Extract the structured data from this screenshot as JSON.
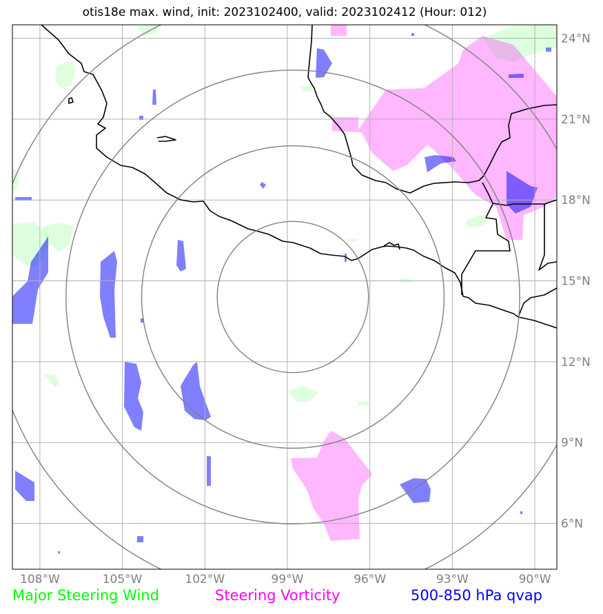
{
  "title": "otis18e max. wind, init: 2023102400, valid: 2023102412 (Hour: 012)",
  "colors": {
    "steering_wind": "#00ff00",
    "steering_vorticity": "#ff00ff",
    "qvap": "#0000ff",
    "grid": "#b0b0b0",
    "range_rings": "#808080",
    "coastline": "#000000",
    "tick_labels": "#808080"
  },
  "map": {
    "lon_range": [
      -109,
      -89.2
    ],
    "lat_range": [
      4.3,
      24.5
    ],
    "lon_ticks": [
      {
        "value": -108,
        "label": "108°W"
      },
      {
        "value": -105,
        "label": "105°W"
      },
      {
        "value": -102,
        "label": "102°W"
      },
      {
        "value": -99,
        "label": "99°W"
      },
      {
        "value": -96,
        "label": "96°W"
      },
      {
        "value": -93,
        "label": "93°W"
      },
      {
        "value": -90,
        "label": "90°W"
      }
    ],
    "lat_ticks": [
      {
        "value": 24,
        "label": "24°N"
      },
      {
        "value": 21,
        "label": "21°N"
      },
      {
        "value": 18,
        "label": "18°N"
      },
      {
        "value": 15,
        "label": "15°N"
      },
      {
        "value": 12,
        "label": "12°N"
      },
      {
        "value": 9,
        "label": "9°N"
      },
      {
        "value": 6,
        "label": "6°N"
      }
    ],
    "storm_center": {
      "lon": -98.8,
      "lat": 14.4
    },
    "range_rings_deg": [
      2.75,
      5.5,
      8.25,
      11.0
    ]
  },
  "legend": [
    {
      "label": "Major Steering Wind",
      "color": "#00ff00"
    },
    {
      "label": "Steering Vorticity",
      "color": "#ff00ff"
    },
    {
      "label": "500-850 hPa qvap",
      "color": "#0000ff"
    }
  ]
}
